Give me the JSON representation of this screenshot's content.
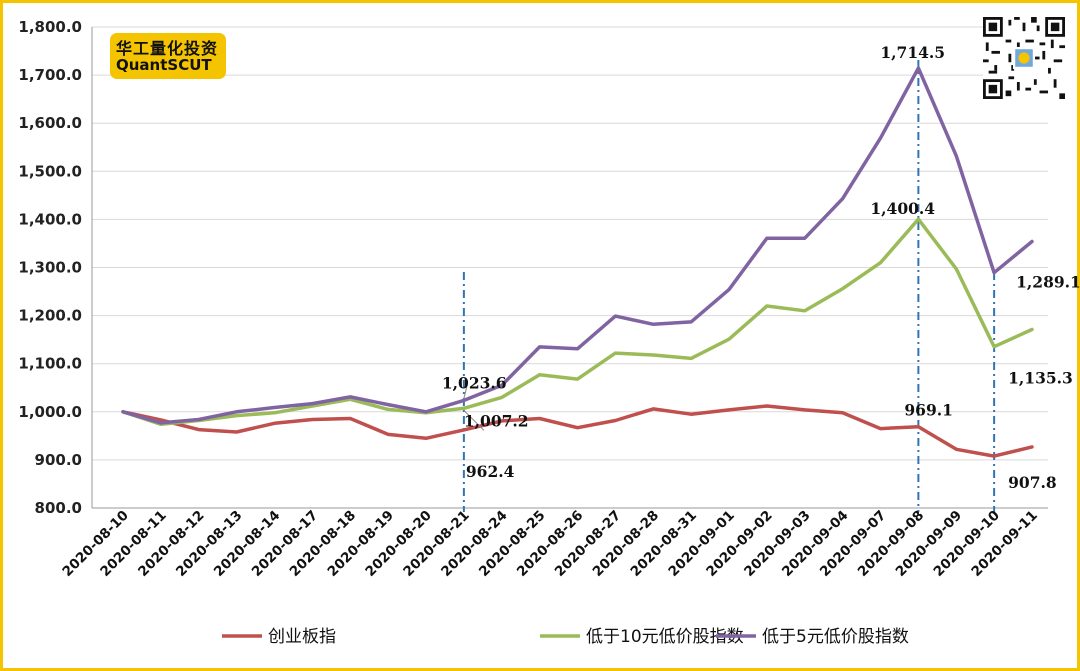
{
  "logo": {
    "cn": "华工量化投资",
    "en": "QuantSCUT"
  },
  "colors": {
    "frame": "#f5c400",
    "series": [
      "#c0504d",
      "#9bbb59",
      "#8064a2"
    ],
    "marker_line": "#2e75b6",
    "grid": "#d9d9d9"
  },
  "chart_data": {
    "type": "line",
    "title": "",
    "xlabel": "",
    "ylabel": "",
    "ylim": [
      800,
      1800
    ],
    "ytick_step": 100,
    "ytick_labels": [
      "800.0",
      "900.0",
      "1,000.0",
      "1,100.0",
      "1,200.0",
      "1,300.0",
      "1,400.0",
      "1,500.0",
      "1,600.0",
      "1,700.0",
      "1,800.0"
    ],
    "grid": true,
    "legend_position": "bottom",
    "x": [
      "2020-08-10",
      "2020-08-11",
      "2020-08-12",
      "2020-08-13",
      "2020-08-14",
      "2020-08-17",
      "2020-08-18",
      "2020-08-19",
      "2020-08-20",
      "2020-08-21",
      "2020-08-24",
      "2020-08-25",
      "2020-08-26",
      "2020-08-27",
      "2020-08-28",
      "2020-08-31",
      "2020-09-01",
      "2020-09-02",
      "2020-09-03",
      "2020-09-04",
      "2020-09-07",
      "2020-09-08",
      "2020-09-09",
      "2020-09-10",
      "2020-09-11"
    ],
    "series": [
      {
        "name": "创业板指",
        "values": [
          1000,
          983,
          963,
          958,
          976,
          984,
          986,
          953,
          945,
          962.4,
          981,
          986,
          967,
          982,
          1006,
          995,
          1004,
          1012,
          1004,
          998,
          965,
          969.1,
          922,
          907.8,
          927
        ]
      },
      {
        "name": "低于10元低价股指数",
        "values": [
          1000,
          974,
          982,
          992,
          998,
          1012,
          1026,
          1005,
          998,
          1007.2,
          1030,
          1077,
          1068,
          1122,
          1118,
          1111,
          1151,
          1220,
          1210,
          1256,
          1310,
          1400.4,
          1297,
          1135.3,
          1171
        ]
      },
      {
        "name": "低于5元低价股指数",
        "values": [
          1000,
          977,
          984,
          1000,
          1009,
          1017,
          1031,
          1015,
          1000,
          1023.6,
          1055,
          1135,
          1131,
          1199,
          1182,
          1187,
          1254,
          1361,
          1361,
          1443,
          1569,
          1714.5,
          1532,
          1289.1,
          1354
        ]
      }
    ],
    "vertical_markers": [
      "2020-08-21",
      "2020-09-08",
      "2020-09-10"
    ],
    "annotations": [
      {
        "x": "2020-08-21",
        "series": 2,
        "text": "1,023.6"
      },
      {
        "x": "2020-08-21",
        "series": 1,
        "text": "1,007.2"
      },
      {
        "x": "2020-08-21",
        "series": 0,
        "text": "962.4"
      },
      {
        "x": "2020-09-08",
        "series": 2,
        "text": "1,714.5"
      },
      {
        "x": "2020-09-08",
        "series": 1,
        "text": "1,400.4"
      },
      {
        "x": "2020-09-08",
        "series": 0,
        "text": "969.1"
      },
      {
        "x": "2020-09-10",
        "series": 2,
        "text": "1,289.1"
      },
      {
        "x": "2020-09-10",
        "series": 1,
        "text": "1,135.3"
      },
      {
        "x": "2020-09-10",
        "series": 0,
        "text": "907.8"
      }
    ]
  }
}
